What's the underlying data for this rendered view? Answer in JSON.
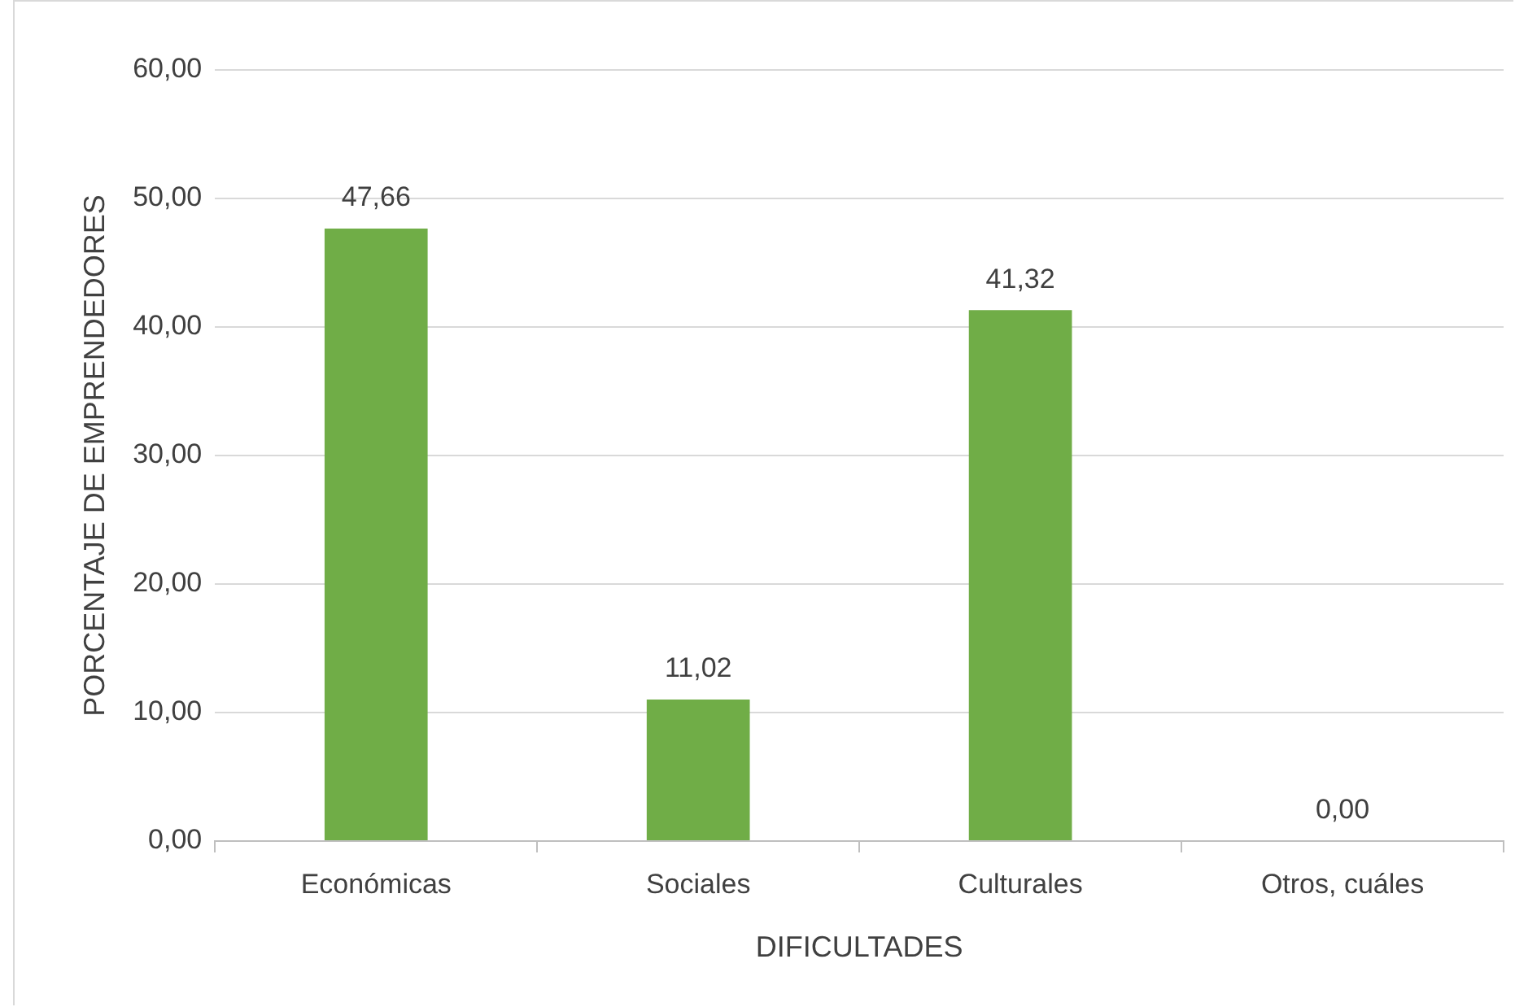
{
  "chart_data": {
    "type": "bar",
    "xlabel": "DIFICULTADES",
    "ylabel": "PORCENTAJE DE EMPRENDEDORES",
    "categories": [
      "Económicas",
      "Sociales",
      "Culturales",
      "Otros, cuáles"
    ],
    "values": [
      47.66,
      11.02,
      41.32,
      0
    ],
    "value_labels": [
      "47,66",
      "11,02",
      "41,32",
      "0,00"
    ],
    "color": "#70ad47",
    "ylim": [
      0,
      60
    ],
    "yticks": [
      {
        "value": 0,
        "label": "0,00"
      },
      {
        "value": 10,
        "label": "10,00"
      },
      {
        "value": 20,
        "label": "20,00"
      },
      {
        "value": 30,
        "label": "30,00"
      },
      {
        "value": 40,
        "label": "40,00"
      },
      {
        "value": 50,
        "label": "50,00"
      },
      {
        "value": 60,
        "label": "60,00"
      }
    ],
    "grid": "y",
    "legend": false
  }
}
